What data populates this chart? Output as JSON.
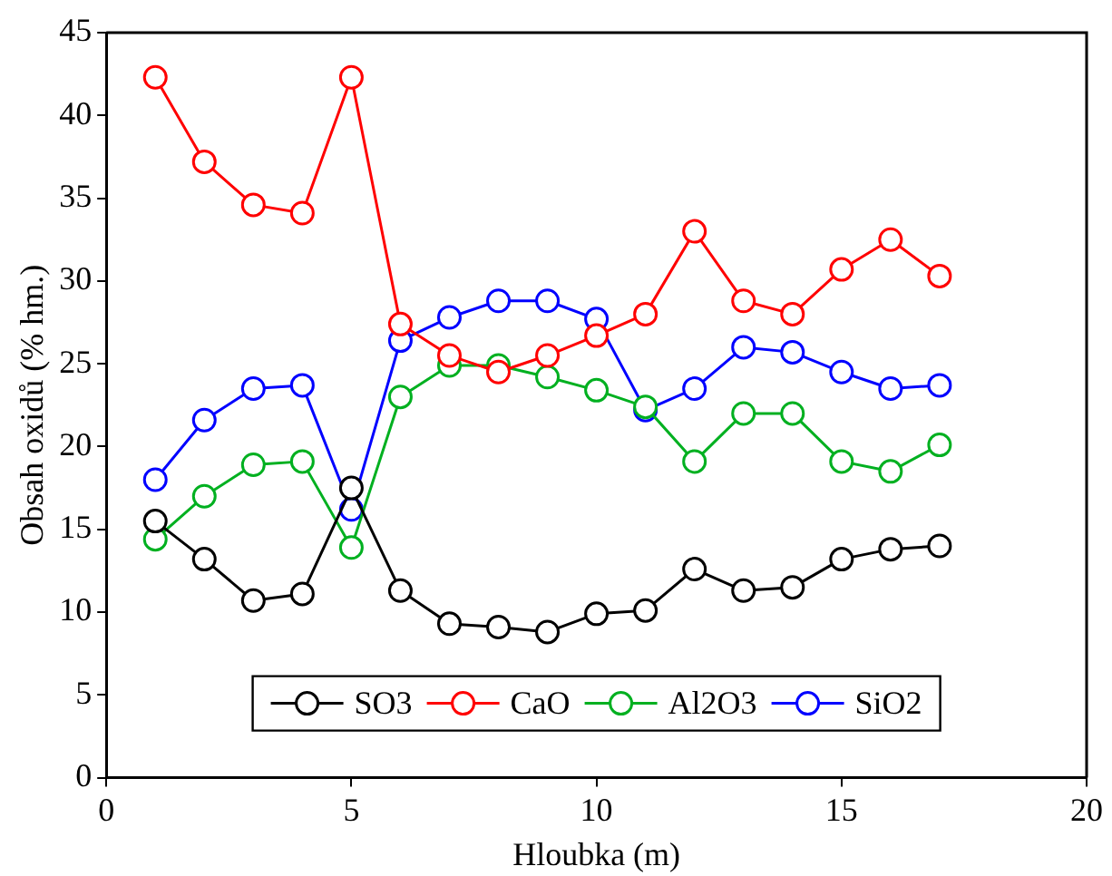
{
  "chart_data": {
    "type": "line",
    "xlabel": "Hloubka (m)",
    "ylabel": "Obsah oxidů (% hm.)",
    "x": [
      1,
      2,
      3,
      4,
      5,
      6,
      7,
      8,
      9,
      10,
      11,
      12,
      13,
      14,
      15,
      16,
      17
    ],
    "series": [
      {
        "name": "SO3",
        "color": "#000000",
        "values": [
          15.5,
          13.2,
          10.7,
          11.1,
          17.5,
          11.3,
          9.3,
          9.1,
          8.8,
          9.9,
          10.1,
          12.6,
          11.3,
          11.5,
          13.2,
          13.8,
          14.0
        ]
      },
      {
        "name": "CaO",
        "color": "#ff0000",
        "values": [
          42.3,
          37.2,
          34.6,
          34.1,
          42.3,
          27.4,
          25.5,
          24.5,
          25.5,
          26.7,
          28.0,
          33.0,
          28.8,
          28.0,
          30.7,
          32.5,
          30.3
        ]
      },
      {
        "name": "Al2O3",
        "color": "#00b020",
        "values": [
          14.4,
          17.0,
          18.9,
          19.1,
          13.9,
          23.0,
          24.9,
          24.9,
          24.2,
          23.4,
          22.4,
          19.1,
          22.0,
          22.0,
          19.1,
          18.5,
          20.1
        ]
      },
      {
        "name": "SiO2",
        "color": "#0000ff",
        "values": [
          18.0,
          21.6,
          23.5,
          23.7,
          16.2,
          26.4,
          27.8,
          28.8,
          28.8,
          27.7,
          22.2,
          23.5,
          26.0,
          25.7,
          24.5,
          23.5,
          23.7
        ]
      }
    ],
    "xlim": [
      0,
      20
    ],
    "xticks": [
      0,
      5,
      10,
      15,
      20
    ],
    "ylim": [
      0,
      45
    ],
    "yticks": [
      0,
      5,
      10,
      15,
      20,
      25,
      30,
      35,
      40,
      45
    ],
    "grid": false,
    "legend": "bottom",
    "marker": "circle",
    "line_style": "solid"
  }
}
